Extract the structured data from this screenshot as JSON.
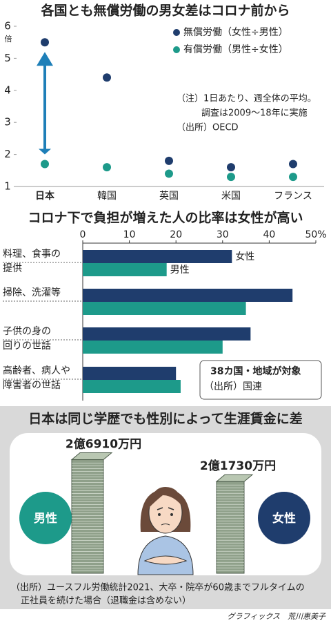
{
  "chart_data": [
    {
      "type": "dot",
      "title": "各国とも無償労働の男女差はコロナ前から",
      "yunit": "倍",
      "categories": [
        "日本",
        "韓国",
        "英国",
        "米国",
        "フランス"
      ],
      "series": [
        {
          "name": "無償労働（女性÷男性）",
          "color": "#1f3d6d",
          "values": [
            5.5,
            4.4,
            1.8,
            1.6,
            1.7
          ]
        },
        {
          "name": "有償労働（男性÷女性）",
          "color": "#1d9a8a",
          "values": [
            1.7,
            1.6,
            1.4,
            1.3,
            1.3
          ]
        }
      ],
      "ylim": [
        1,
        6
      ],
      "yticks": [
        1,
        2,
        3,
        4,
        5,
        6
      ],
      "notes": [
        "（注）1日あたり、週全体の平均。",
        "調査は2009～18年に実施",
        "（出所）OECD"
      ]
    },
    {
      "type": "barh",
      "title": "コロナ下で負担が増えた人の比率は女性が高い",
      "categories": [
        [
          "料理、食事の",
          "提供"
        ],
        [
          "掃除、洗濯等"
        ],
        [
          "子供の身の",
          "回りの世話"
        ],
        [
          "高齢者、病人や",
          "障害者の世話"
        ]
      ],
      "series": [
        {
          "name": "女性",
          "color": "#1f3d6d",
          "values": [
            32,
            45,
            36,
            20
          ]
        },
        {
          "name": "男性",
          "color": "#1d9a8a",
          "values": [
            18,
            35,
            30,
            21
          ]
        }
      ],
      "xlim": [
        0,
        50
      ],
      "xticks": [
        0,
        10,
        20,
        30,
        40,
        {
          "value": 50,
          "label": "50%"
        }
      ],
      "notes": [
        "38カ国・地域が対象",
        "（出所）国連"
      ]
    },
    {
      "type": "stack",
      "title": "日本は同じ学歴でも性別によって生涯賃金に差",
      "categories": [
        "男性",
        "女性"
      ],
      "colors": [
        "#1d9a8a",
        "#1f3d6d"
      ],
      "values": [
        269100000,
        217300000
      ],
      "value_labels": [
        "2億6910万円",
        "2億1730万円"
      ],
      "notes": [
        "（出所）ユースフル労働統計2021、大卒・院卒が60歳までフルタイムの",
        "正社員を続けた場合（退職金は含めない）"
      ],
      "credit": "グラフィックス　荒川恵美子"
    }
  ]
}
